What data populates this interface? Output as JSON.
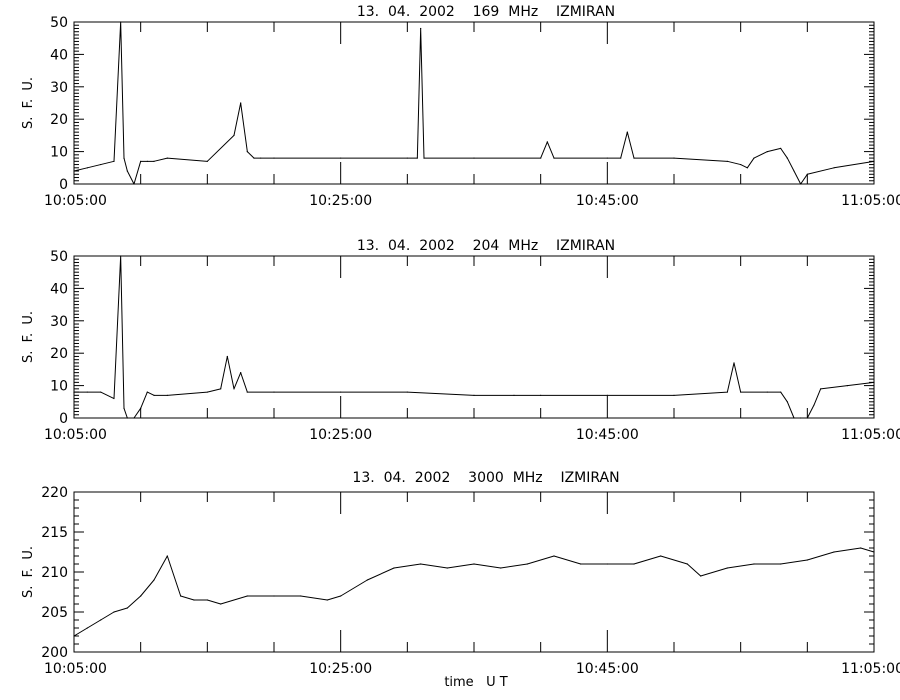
{
  "chart_data": [
    {
      "type": "line",
      "title": "13.  04.  2002    169  MHz    IZMIRAN",
      "ylabel": "S.  F.  U.",
      "xlabel": "",
      "x_unit": "UT (HH:MM:SS)",
      "xlim": [
        "10:05:00",
        "11:05:00"
      ],
      "ylim": [
        0,
        50
      ],
      "y_ticks": [
        0,
        10,
        20,
        30,
        40,
        50
      ],
      "x_tick_labels": [
        "10:05:00",
        "10:25:00",
        "10:45:00",
        "11:05:00"
      ],
      "grid": false,
      "series": [
        {
          "x": [
            "10:05:00",
            "10:06:00",
            "10:07:00",
            "10:08:00",
            "10:08:30",
            "10:08:45",
            "10:09:00",
            "10:09:30",
            "10:10:00",
            "10:10:30",
            "10:11:00",
            "10:12:00",
            "10:15:00",
            "10:17:00",
            "10:17:30",
            "10:18:00",
            "10:18:30",
            "10:19:00",
            "10:20:00",
            "10:25:00",
            "10:30:00",
            "10:30:45",
            "10:31:00",
            "10:31:15",
            "10:35:00",
            "10:40:00",
            "10:40:30",
            "10:41:00",
            "10:45:00",
            "10:46:00",
            "10:46:30",
            "10:47:00",
            "10:50:00",
            "10:54:00",
            "10:55:00",
            "10:55:30",
            "10:56:00",
            "10:57:00",
            "10:58:00",
            "10:58:30",
            "10:59:00",
            "10:59:30",
            "11:00:00",
            "11:02:00",
            "11:05:00"
          ],
          "y": [
            4,
            5,
            6,
            7,
            50,
            8,
            4,
            0,
            7,
            7,
            7,
            8,
            7,
            15,
            25,
            10,
            8,
            8,
            8,
            8,
            8,
            8,
            48,
            8,
            8,
            8,
            13,
            8,
            8,
            8,
            16,
            8,
            8,
            7,
            6,
            5,
            8,
            10,
            11,
            8,
            4,
            0,
            3,
            5,
            7
          ]
        }
      ]
    },
    {
      "type": "line",
      "title": "13.  04.  2002    204  MHz    IZMIRAN",
      "ylabel": "S.  F.  U.",
      "xlabel": "",
      "x_unit": "UT (HH:MM:SS)",
      "xlim": [
        "10:05:00",
        "11:05:00"
      ],
      "ylim": [
        0,
        50
      ],
      "y_ticks": [
        0,
        10,
        20,
        30,
        40,
        50
      ],
      "x_tick_labels": [
        "10:05:00",
        "10:25:00",
        "10:45:00",
        "11:05:00"
      ],
      "grid": false,
      "series": [
        {
          "x": [
            "10:05:00",
            "10:06:00",
            "10:07:00",
            "10:08:00",
            "10:08:30",
            "10:08:45",
            "10:09:00",
            "10:09:30",
            "10:10:00",
            "10:10:30",
            "10:11:00",
            "10:12:00",
            "10:15:00",
            "10:16:00",
            "10:16:30",
            "10:17:00",
            "10:17:30",
            "10:18:00",
            "10:20:00",
            "10:25:00",
            "10:30:00",
            "10:35:00",
            "10:38:00",
            "10:40:00",
            "10:45:00",
            "10:50:00",
            "10:54:00",
            "10:54:30",
            "10:55:00",
            "10:57:00",
            "10:58:00",
            "10:58:30",
            "10:59:00",
            "10:59:30",
            "11:00:00",
            "11:00:30",
            "11:01:00",
            "11:03:00",
            "11:05:00"
          ],
          "y": [
            8,
            8,
            8,
            6,
            50,
            3,
            0,
            0,
            3,
            8,
            7,
            7,
            8,
            9,
            19,
            9,
            14,
            8,
            8,
            8,
            8,
            7,
            7,
            7,
            7,
            7,
            8,
            17,
            8,
            8,
            8,
            5,
            0,
            0,
            0,
            4,
            9,
            10,
            11
          ]
        }
      ]
    },
    {
      "type": "line",
      "title": "13.  04.  2002    3000  MHz    IZMIRAN",
      "ylabel": "S.  F.  U.",
      "xlabel": "time   U T",
      "x_unit": "UT (HH:MM:SS)",
      "xlim": [
        "10:05:00",
        "11:05:00"
      ],
      "ylim": [
        200,
        220
      ],
      "y_ticks": [
        200,
        205,
        210,
        215,
        220
      ],
      "x_tick_labels": [
        "10:05:00",
        "10:25:00",
        "10:45:00",
        "11:05:00"
      ],
      "grid": false,
      "series": [
        {
          "x": [
            "10:05:00",
            "10:06:00",
            "10:07:00",
            "10:08:00",
            "10:09:00",
            "10:10:00",
            "10:11:00",
            "10:12:00",
            "10:13:00",
            "10:14:00",
            "10:15:00",
            "10:16:00",
            "10:18:00",
            "10:20:00",
            "10:22:00",
            "10:24:00",
            "10:25:00",
            "10:27:00",
            "10:29:00",
            "10:31:00",
            "10:33:00",
            "10:35:00",
            "10:37:00",
            "10:39:00",
            "10:41:00",
            "10:43:00",
            "10:45:00",
            "10:47:00",
            "10:49:00",
            "10:51:00",
            "10:52:00",
            "10:54:00",
            "10:56:00",
            "10:58:00",
            "11:00:00",
            "11:02:00",
            "11:04:00",
            "11:05:00"
          ],
          "y": [
            202,
            203,
            204,
            205,
            205.5,
            207,
            209,
            212,
            207,
            206.5,
            206.5,
            206,
            207,
            207,
            207,
            206.5,
            207,
            209,
            210.5,
            211,
            210.5,
            211,
            210.5,
            211,
            212,
            211,
            211,
            211,
            212,
            211,
            209.5,
            210.5,
            211,
            211,
            211.5,
            212.5,
            213,
            212.5
          ]
        }
      ]
    }
  ]
}
